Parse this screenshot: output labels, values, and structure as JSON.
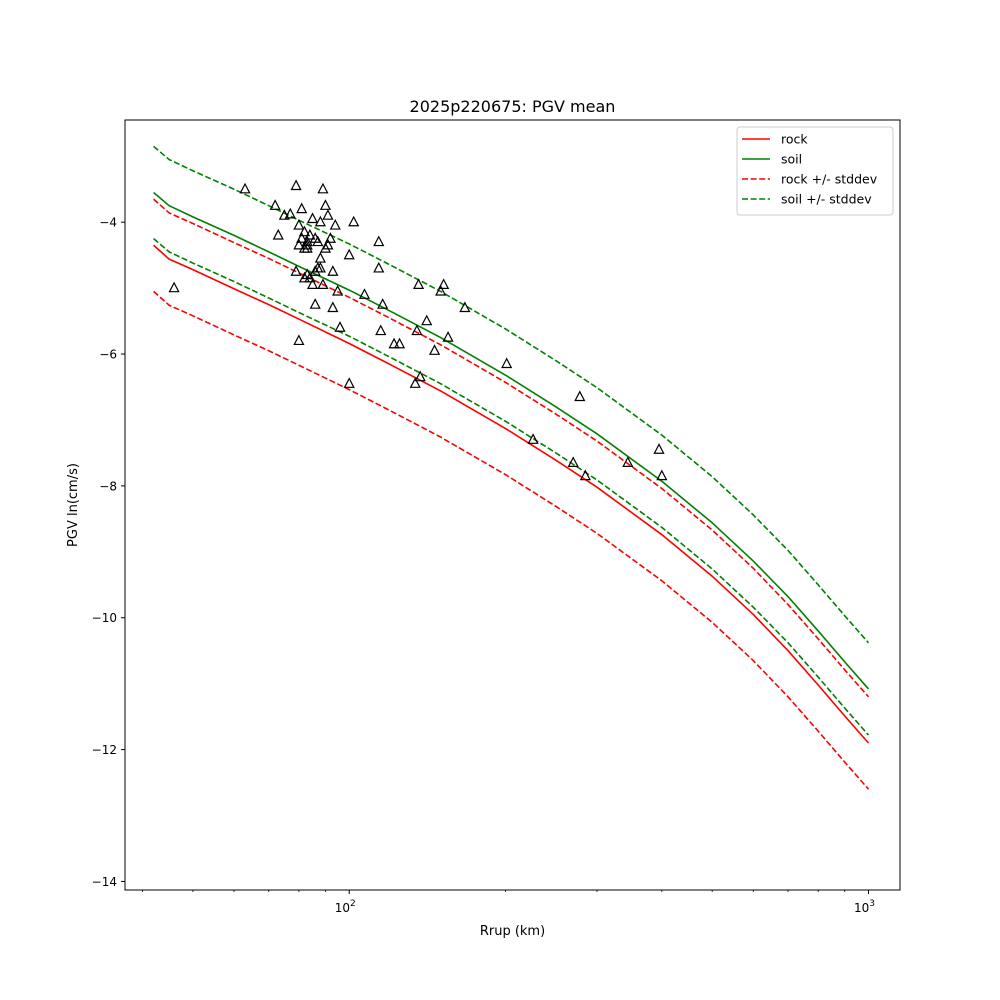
{
  "chart_data": {
    "type": "line",
    "title": "2025p220675: PGV mean",
    "xlabel": "Rrup (km)",
    "ylabel": "PGV ln(cm/s)",
    "xscale": "log",
    "xlim": [
      37,
      1150
    ],
    "ylim": [
      -14.13,
      -2.45
    ],
    "x_ticks": [
      {
        "value": 100,
        "base": "10",
        "exp": "2"
      },
      {
        "value": 1000,
        "base": "10",
        "exp": "3"
      }
    ],
    "x_minor_ticks": [
      40,
      50,
      60,
      70,
      80,
      90,
      200,
      300,
      400,
      500,
      600,
      700,
      800,
      900
    ],
    "y_ticks": [
      {
        "value": -4,
        "label": "−4"
      },
      {
        "value": -6,
        "label": "−6"
      },
      {
        "value": -8,
        "label": "−8"
      },
      {
        "value": -10,
        "label": "−10"
      },
      {
        "value": -12,
        "label": "−12"
      },
      {
        "value": -14,
        "label": "−14"
      }
    ],
    "grid": false,
    "legend": {
      "position": "top-right",
      "entries": [
        {
          "label": "rock",
          "color": "#ff0000",
          "dashed": false
        },
        {
          "label": "soil",
          "color": "#008000",
          "dashed": false
        },
        {
          "label": "rock +/- stddev",
          "color": "#ff0000",
          "dashed": true
        },
        {
          "label": "soil +/- stddev",
          "color": "#008000",
          "dashed": true
        }
      ]
    },
    "series": [
      {
        "name": "rock",
        "color": "#ff0000",
        "dashed": false,
        "x": [
          42,
          45,
          50,
          60,
          70,
          80,
          100,
          120,
          150,
          200,
          250,
          300,
          400,
          500,
          600,
          700,
          800,
          900,
          1000
        ],
        "y": [
          -4.35,
          -4.56,
          -4.72,
          -5.01,
          -5.25,
          -5.47,
          -5.84,
          -6.16,
          -6.56,
          -7.13,
          -7.61,
          -8.02,
          -8.74,
          -9.37,
          -9.95,
          -10.5,
          -11.02,
          -11.49,
          -11.9
        ]
      },
      {
        "name": "soil",
        "color": "#008000",
        "dashed": false,
        "x": [
          42,
          45,
          50,
          60,
          70,
          80,
          100,
          120,
          150,
          200,
          250,
          300,
          400,
          500,
          600,
          700,
          800,
          900,
          1000
        ],
        "y": [
          -3.55,
          -3.75,
          -3.92,
          -4.2,
          -4.45,
          -4.67,
          -5.03,
          -5.35,
          -5.75,
          -6.32,
          -6.8,
          -7.21,
          -7.93,
          -8.56,
          -9.14,
          -9.68,
          -10.2,
          -10.67,
          -11.08
        ]
      },
      {
        "name": "rock +/- stddev",
        "color": "#ff0000",
        "dashed": true,
        "x": [
          42,
          45,
          50,
          60,
          70,
          80,
          100,
          120,
          150,
          200,
          250,
          300,
          400,
          500,
          600,
          700,
          800,
          900,
          1000
        ],
        "y": [
          -3.65,
          -3.86,
          -4.02,
          -4.31,
          -4.55,
          -4.77,
          -5.14,
          -5.46,
          -5.86,
          -6.43,
          -6.91,
          -7.32,
          -8.04,
          -8.67,
          -9.25,
          -9.8,
          -10.32,
          -10.79,
          -11.2
        ]
      },
      {
        "name": "rock +/- stddev",
        "color": "#ff0000",
        "dashed": true,
        "x": [
          42,
          45,
          50,
          60,
          70,
          80,
          100,
          120,
          150,
          200,
          250,
          300,
          400,
          500,
          600,
          700,
          800,
          900,
          1000
        ],
        "y": [
          -5.05,
          -5.26,
          -5.42,
          -5.71,
          -5.95,
          -6.17,
          -6.54,
          -6.86,
          -7.26,
          -7.83,
          -8.31,
          -8.72,
          -9.44,
          -10.07,
          -10.65,
          -11.2,
          -11.72,
          -12.19,
          -12.6
        ]
      },
      {
        "name": "soil +/- stddev",
        "color": "#008000",
        "dashed": true,
        "x": [
          42,
          45,
          50,
          60,
          70,
          80,
          100,
          120,
          150,
          200,
          250,
          300,
          400,
          500,
          600,
          700,
          800,
          900,
          1000
        ],
        "y": [
          -2.85,
          -3.05,
          -3.22,
          -3.5,
          -3.75,
          -3.97,
          -4.33,
          -4.65,
          -5.05,
          -5.62,
          -6.1,
          -6.51,
          -7.23,
          -7.86,
          -8.44,
          -8.98,
          -9.5,
          -9.97,
          -10.38
        ]
      },
      {
        "name": "soil +/- stddev",
        "color": "#008000",
        "dashed": true,
        "x": [
          42,
          45,
          50,
          60,
          70,
          80,
          100,
          120,
          150,
          200,
          250,
          300,
          400,
          500,
          600,
          700,
          800,
          900,
          1000
        ],
        "y": [
          -4.25,
          -4.45,
          -4.62,
          -4.9,
          -5.15,
          -5.37,
          -5.73,
          -6.05,
          -6.45,
          -7.02,
          -7.5,
          -7.91,
          -8.63,
          -9.26,
          -9.84,
          -10.38,
          -10.9,
          -11.37,
          -11.78
        ]
      },
      {
        "name": "",
        "type": "scatter",
        "marker": "triangle-open",
        "color": "#000000",
        "x": [
          46,
          63,
          72,
          73,
          75,
          77,
          79,
          79,
          80,
          80,
          80,
          81,
          81,
          82,
          82,
          82,
          83,
          83,
          83,
          83,
          84,
          84,
          85,
          85,
          86,
          86,
          86,
          87,
          87,
          88,
          88,
          88,
          89,
          89,
          90,
          90,
          91,
          91,
          92,
          93,
          93,
          94,
          95,
          96,
          100,
          100,
          102,
          107,
          114,
          114,
          115,
          116,
          122,
          125,
          134,
          135,
          136,
          137,
          141,
          146,
          150,
          152,
          155,
          167,
          201,
          226,
          270,
          278,
          285,
          344,
          395,
          400
        ],
        "y": [
          -5.0,
          -3.5,
          -3.75,
          -4.2,
          -3.9,
          -3.88,
          -3.45,
          -4.75,
          -4.35,
          -4.05,
          -5.8,
          -3.8,
          -4.25,
          -4.85,
          -4.15,
          -4.4,
          -4.35,
          -4.3,
          -4.4,
          -4.8,
          -4.2,
          -4.85,
          -4.95,
          -3.95,
          -4.25,
          -4.75,
          -5.25,
          -4.3,
          -4.7,
          -4.0,
          -4.55,
          -4.7,
          -3.5,
          -4.95,
          -4.4,
          -3.75,
          -4.35,
          -3.9,
          -4.25,
          -4.75,
          -5.3,
          -4.05,
          -5.05,
          -5.6,
          -6.45,
          -4.5,
          -4.0,
          -5.1,
          -4.3,
          -4.7,
          -5.65,
          -5.25,
          -5.85,
          -5.85,
          -6.45,
          -5.65,
          -4.95,
          -6.35,
          -5.5,
          -5.95,
          -5.05,
          -4.95,
          -5.75,
          -5.3,
          -6.15,
          -7.3,
          -7.65,
          -6.65,
          -7.85,
          -7.65,
          -7.45,
          -7.85
        ]
      }
    ]
  }
}
